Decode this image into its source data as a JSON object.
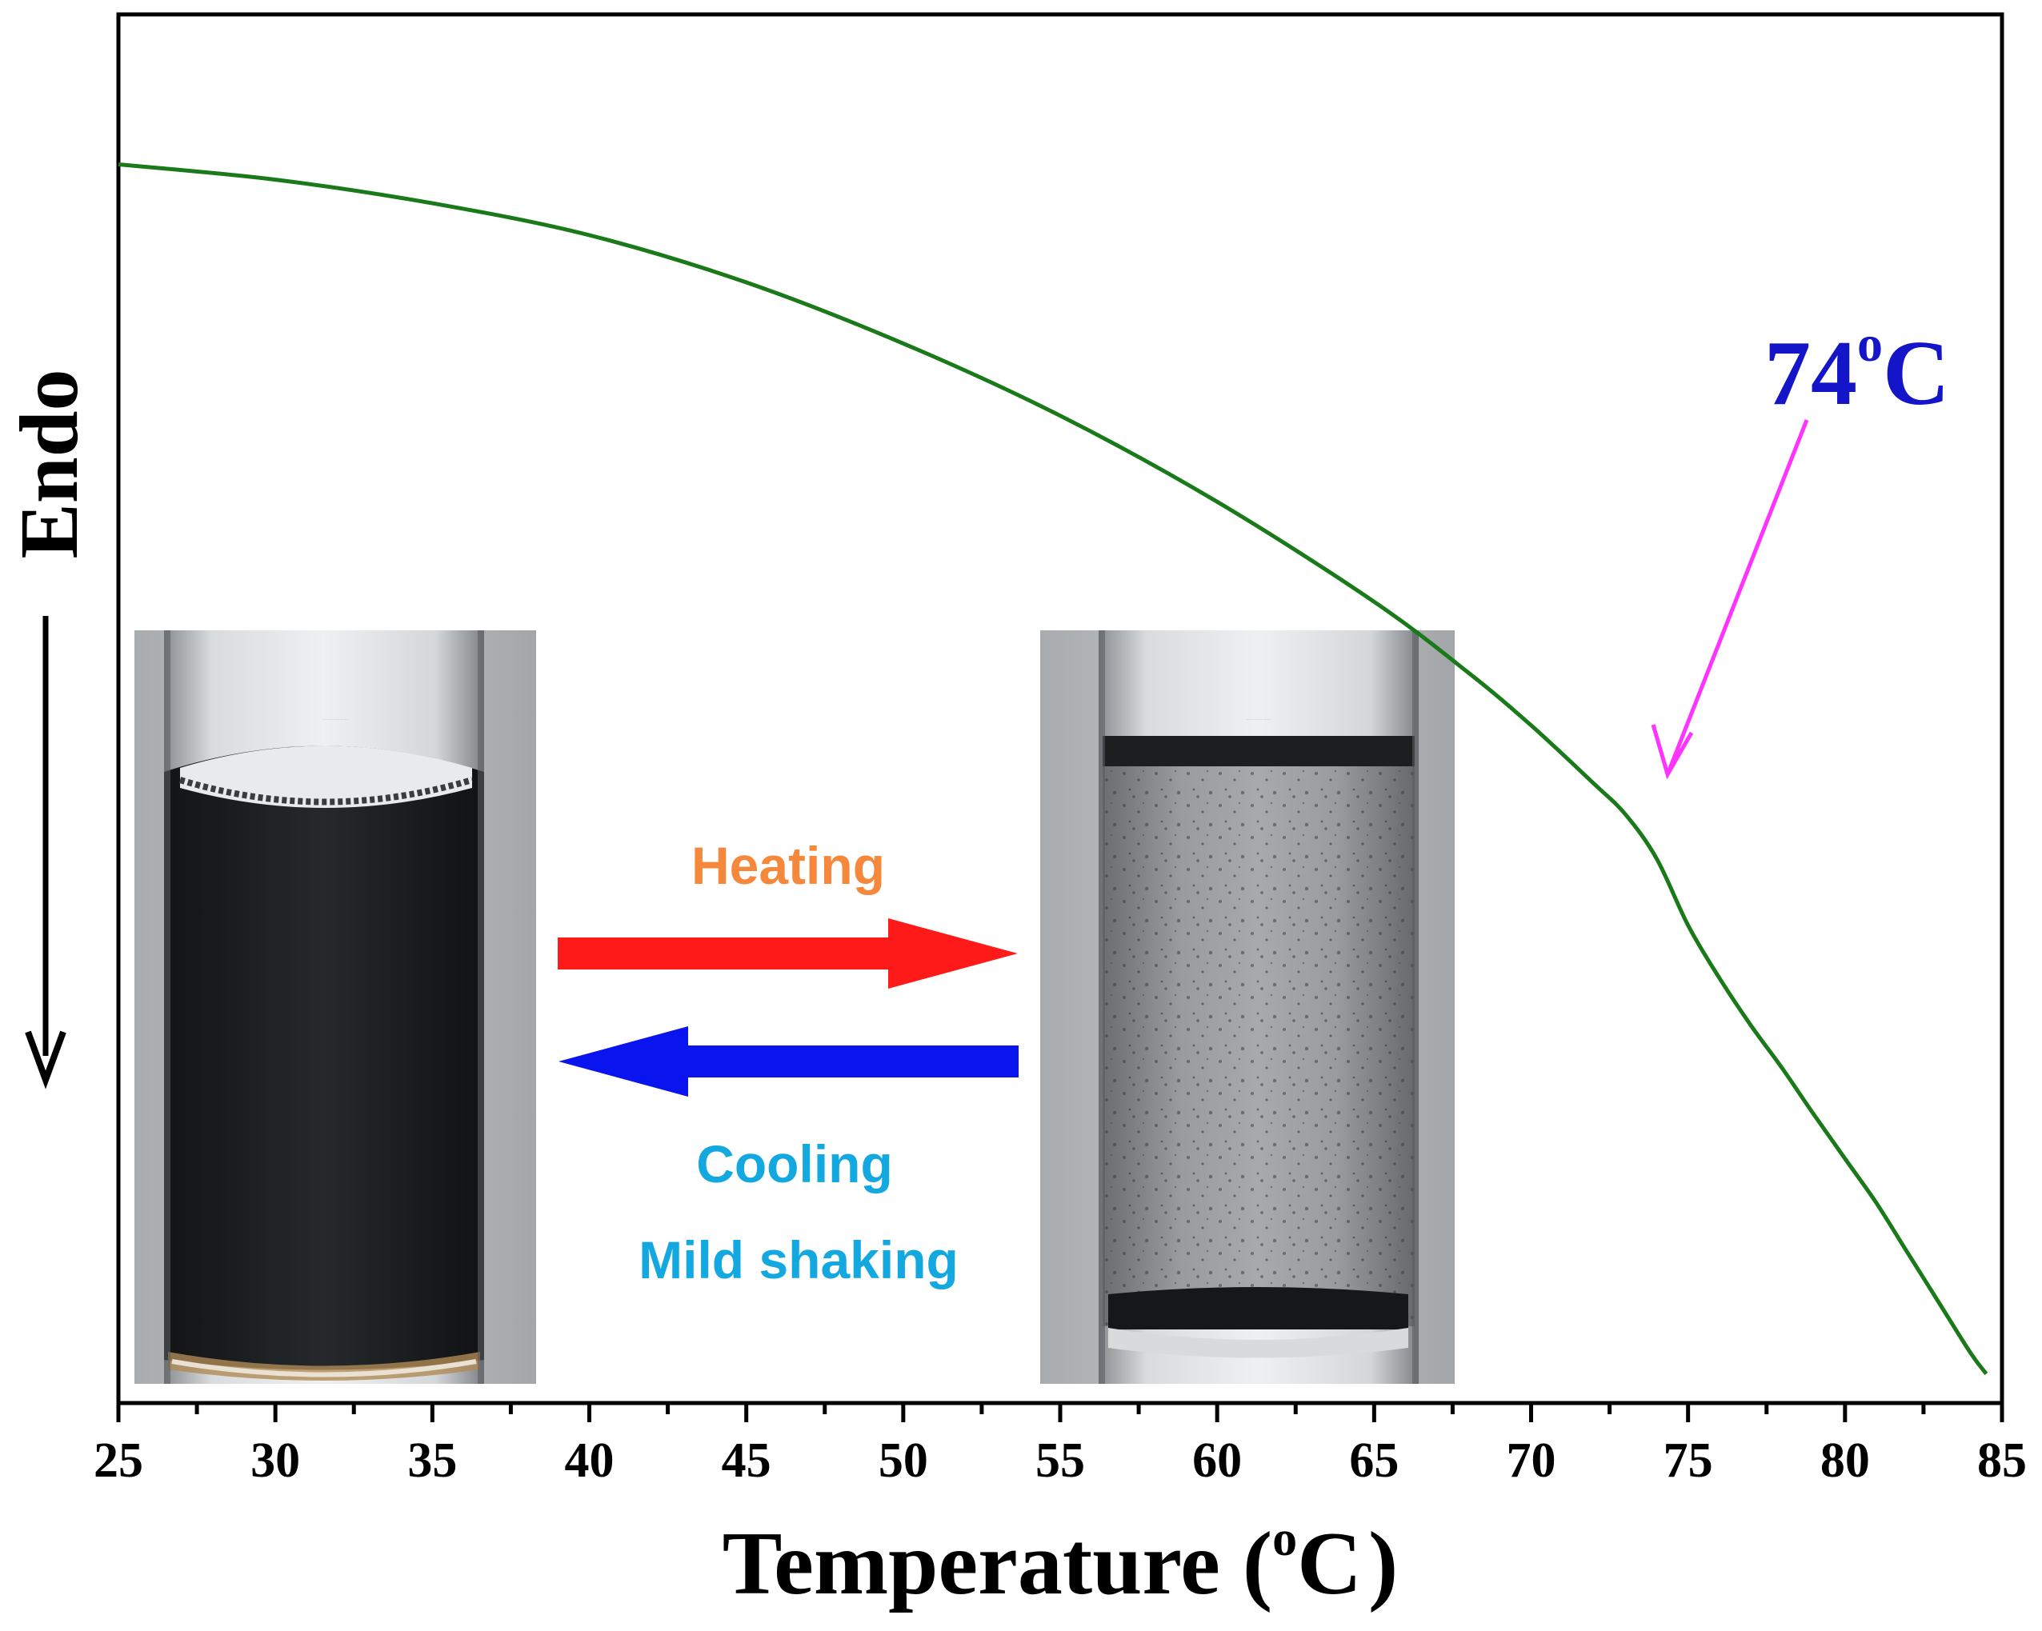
{
  "chart_data": {
    "type": "line",
    "title": "",
    "xlabel": "Temperature (°C)",
    "xlabel_parts": {
      "main": "Temperature (",
      "sup": "o",
      "unit": "C",
      "close": ")"
    },
    "ylabel": "Endo",
    "xlim": [
      25,
      85
    ],
    "ylim": [
      0,
      100
    ],
    "x_ticks": [
      25,
      30,
      35,
      40,
      45,
      50,
      55,
      60,
      65,
      70,
      75,
      80,
      85
    ],
    "x_tick_labels": [
      "25",
      "30",
      "35",
      "40",
      "45",
      "50",
      "55",
      "60",
      "65",
      "70",
      "75",
      "80",
      "85"
    ],
    "y_ticks_shown": false,
    "grid": false,
    "series": [
      {
        "name": "DSC curve",
        "color": "#1a7a1a",
        "x": [
          25,
          30,
          35,
          40,
          45,
          50,
          55,
          60,
          65,
          68,
          70,
          72,
          73,
          74,
          75,
          76,
          77,
          78,
          79,
          80,
          81,
          82,
          83,
          84,
          84.5
        ],
        "y": [
          89.2,
          88.1,
          86.4,
          84.1,
          80.7,
          76.3,
          71.1,
          64.9,
          57.7,
          52.6,
          48.8,
          44.6,
          42.4,
          39.2,
          34.4,
          30.6,
          27.2,
          24.1,
          20.8,
          17.6,
          14.4,
          10.8,
          7.2,
          3.6,
          2.1
        ]
      }
    ],
    "annotations": [
      {
        "text_main": "74",
        "text_sup": "o",
        "text_unit": "C",
        "color": "#1414c8",
        "arrow_color": "#ff33ff",
        "points_to_x": 74.5
      }
    ],
    "ylabel_arrow_direction": "down"
  },
  "insets": {
    "left_vial": {
      "label": "vial before heating (dark dispersion)"
    },
    "right_vial": {
      "label": "vial after heating (grey suspension)"
    },
    "heating": {
      "label": "Heating",
      "color": "#f5883a",
      "arrow_color": "#ff1a1a"
    },
    "cooling": {
      "label": "Cooling",
      "label2": "Mild shaking",
      "color": "#14a8e0",
      "arrow_color": "#0a14ee"
    }
  }
}
